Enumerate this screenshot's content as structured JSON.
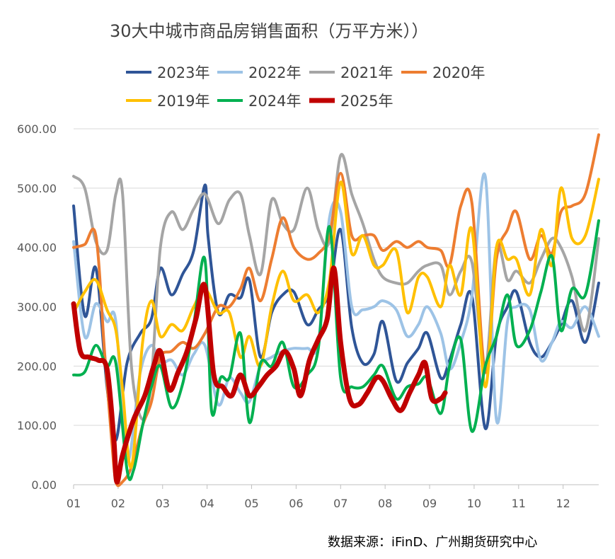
{
  "chart_data": {
    "type": "line",
    "title": "30大中城市商品房销售面积（万平方米））",
    "source": "数据来源：iFinD、广州期货研究中心",
    "x_tick_labels": [
      "01",
      "02",
      "03",
      "04",
      "05",
      "06",
      "07",
      "08",
      "09",
      "10",
      "11",
      "12"
    ],
    "y_tick_labels": [
      "0.00",
      "100.00",
      "200.00",
      "300.00",
      "400.00",
      "500.00",
      "600.00"
    ],
    "ylim": [
      0,
      600
    ],
    "x_domain": [
      1,
      12.8
    ],
    "legend_position": "top",
    "series": [
      {
        "name": "2023年",
        "color": "#2F5597",
        "width": 4,
        "x": [
          1.0,
          1.25,
          1.5,
          1.75,
          1.95,
          2.2,
          2.5,
          2.75,
          2.95,
          3.2,
          3.45,
          3.7,
          3.95,
          4.02,
          4.25,
          4.5,
          4.75,
          4.95,
          5.2,
          5.45,
          5.7,
          5.95,
          6.25,
          6.5,
          6.75,
          7.0,
          7.25,
          7.5,
          7.75,
          7.95,
          8.25,
          8.5,
          8.75,
          8.95,
          9.25,
          9.45,
          9.7,
          9.95,
          10.25,
          10.5,
          10.75,
          10.95,
          11.25,
          11.5,
          11.75,
          11.95,
          12.2,
          12.5,
          12.8
        ],
        "y": [
          470,
          285,
          365,
          165,
          75,
          205,
          255,
          280,
          365,
          320,
          355,
          395,
          505,
          420,
          290,
          320,
          315,
          345,
          215,
          290,
          320,
          325,
          270,
          295,
          325,
          430,
          265,
          205,
          220,
          275,
          175,
          205,
          230,
          255,
          180,
          210,
          270,
          318,
          95,
          250,
          300,
          325,
          240,
          215,
          240,
          270,
          310,
          240,
          340
        ]
      },
      {
        "name": "2022年",
        "color": "#9DC3E6",
        "width": 4,
        "x": [
          1.0,
          1.25,
          1.5,
          1.75,
          1.95,
          2.2,
          2.5,
          2.75,
          2.95,
          3.2,
          3.45,
          3.7,
          3.95,
          4.25,
          4.5,
          4.75,
          4.95,
          5.2,
          5.45,
          5.7,
          5.95,
          6.25,
          6.5,
          6.75,
          7.0,
          7.25,
          7.5,
          7.75,
          7.95,
          8.25,
          8.5,
          8.75,
          8.95,
          9.25,
          9.45,
          9.7,
          9.95,
          10.25,
          10.5,
          10.75,
          10.95,
          11.25,
          11.5,
          11.75,
          11.95,
          12.2,
          12.5,
          12.8
        ],
        "y": [
          410,
          250,
          305,
          275,
          275,
          40,
          190,
          235,
          205,
          210,
          185,
          220,
          235,
          135,
          180,
          155,
          140,
          200,
          215,
          225,
          230,
          230,
          240,
          450,
          460,
          300,
          295,
          300,
          310,
          295,
          250,
          270,
          300,
          255,
          195,
          240,
          318,
          520,
          110,
          275,
          300,
          295,
          210,
          240,
          275,
          265,
          300,
          250
        ]
      },
      {
        "name": "2021年",
        "color": "#A5A5A5",
        "width": 4,
        "x": [
          1.0,
          1.25,
          1.5,
          1.75,
          1.95,
          2.1,
          2.3,
          2.55,
          2.75,
          2.95,
          3.2,
          3.45,
          3.7,
          3.95,
          4.25,
          4.5,
          4.75,
          4.95,
          5.2,
          5.45,
          5.7,
          5.95,
          6.25,
          6.5,
          6.75,
          7.0,
          7.25,
          7.5,
          7.75,
          7.95,
          8.25,
          8.5,
          8.75,
          8.95,
          9.25,
          9.45,
          9.7,
          9.95,
          10.25,
          10.5,
          10.75,
          10.95,
          11.25,
          11.5,
          11.75,
          11.95,
          12.2,
          12.5,
          12.8
        ],
        "y": [
          520,
          500,
          410,
          395,
          490,
          490,
          200,
          110,
          180,
          400,
          460,
          430,
          465,
          490,
          440,
          480,
          490,
          420,
          355,
          480,
          440,
          430,
          500,
          430,
          410,
          555,
          490,
          440,
          380,
          350,
          340,
          340,
          360,
          370,
          370,
          320,
          360,
          375,
          200,
          400,
          345,
          360,
          340,
          380,
          415,
          400,
          350,
          260,
          415
        ]
      },
      {
        "name": "2020年",
        "color": "#ED7D31",
        "width": 4,
        "x": [
          1.0,
          1.25,
          1.5,
          1.7,
          1.85,
          1.95,
          2.1,
          2.3,
          2.55,
          2.75,
          2.95,
          3.2,
          3.45,
          3.7,
          3.95,
          4.25,
          4.5,
          4.75,
          4.95,
          5.2,
          5.45,
          5.7,
          5.95,
          6.25,
          6.5,
          6.75,
          7.0,
          7.25,
          7.5,
          7.75,
          7.95,
          8.25,
          8.5,
          8.75,
          8.95,
          9.25,
          9.45,
          9.7,
          9.95,
          10.25,
          10.5,
          10.75,
          10.95,
          11.25,
          11.5,
          11.75,
          11.95,
          12.2,
          12.5,
          12.8
        ],
        "y": [
          400,
          405,
          420,
          220,
          80,
          5,
          5,
          30,
          100,
          140,
          215,
          225,
          240,
          230,
          255,
          300,
          300,
          330,
          365,
          310,
          380,
          450,
          400,
          380,
          390,
          420,
          525,
          420,
          420,
          420,
          395,
          410,
          400,
          410,
          400,
          395,
          370,
          470,
          475,
          190,
          380,
          430,
          460,
          380,
          420,
          390,
          460,
          470,
          490,
          590
        ]
      },
      {
        "name": "2019年",
        "color": "#FFC000",
        "width": 4,
        "x": [
          1.0,
          1.25,
          1.5,
          1.75,
          1.95,
          2.1,
          2.3,
          2.55,
          2.75,
          2.95,
          3.2,
          3.45,
          3.7,
          3.95,
          4.25,
          4.5,
          4.75,
          4.95,
          5.2,
          5.45,
          5.7,
          5.95,
          6.25,
          6.5,
          6.75,
          7.0,
          7.25,
          7.5,
          7.75,
          7.95,
          8.25,
          8.5,
          8.75,
          8.95,
          9.25,
          9.45,
          9.7,
          9.95,
          10.25,
          10.5,
          10.75,
          10.95,
          11.25,
          11.5,
          11.75,
          11.95,
          12.2,
          12.5,
          12.8
        ],
        "y": [
          290,
          325,
          345,
          295,
          260,
          160,
          30,
          240,
          310,
          250,
          270,
          260,
          300,
          330,
          290,
          290,
          215,
          250,
          200,
          300,
          360,
          310,
          320,
          290,
          345,
          510,
          390,
          420,
          370,
          370,
          395,
          290,
          350,
          350,
          300,
          370,
          320,
          430,
          165,
          400,
          380,
          380,
          320,
          430,
          370,
          500,
          415,
          420,
          515
        ]
      },
      {
        "name": "2024年",
        "color": "#00B050",
        "width": 4,
        "x": [
          1.0,
          1.25,
          1.5,
          1.75,
          1.95,
          2.2,
          2.35,
          2.55,
          2.75,
          2.95,
          3.2,
          3.45,
          3.7,
          3.95,
          4.1,
          4.3,
          4.5,
          4.75,
          4.95,
          5.2,
          5.45,
          5.7,
          5.95,
          6.25,
          6.5,
          6.75,
          7.0,
          7.25,
          7.5,
          7.75,
          7.95,
          8.25,
          8.5,
          8.75,
          8.95,
          9.25,
          9.45,
          9.7,
          9.95,
          10.25,
          10.5,
          10.75,
          10.95,
          11.25,
          11.5,
          11.75,
          11.95,
          12.2,
          12.5,
          12.8
        ],
        "y": [
          185,
          190,
          235,
          200,
          205,
          25,
          25,
          100,
          165,
          200,
          130,
          170,
          270,
          380,
          125,
          180,
          180,
          255,
          105,
          205,
          200,
          240,
          165,
          185,
          230,
          435,
          180,
          165,
          165,
          185,
          200,
          145,
          165,
          170,
          180,
          120,
          200,
          245,
          90,
          200,
          250,
          320,
          235,
          260,
          325,
          385,
          260,
          330,
          320,
          445
        ]
      },
      {
        "name": "2025年",
        "color": "#C00000",
        "width": 7,
        "x": [
          1.0,
          1.15,
          1.35,
          1.55,
          1.75,
          1.9,
          1.97,
          2.1,
          2.35,
          2.6,
          2.8,
          2.95,
          3.15,
          3.35,
          3.55,
          3.75,
          3.95,
          4.15,
          4.35,
          4.55,
          4.75,
          4.95,
          5.15,
          5.35,
          5.55,
          5.75,
          5.95,
          6.1,
          6.3,
          6.5,
          6.7,
          6.85,
          7.0,
          7.2,
          7.4,
          7.6,
          7.8,
          7.95,
          8.15,
          8.35,
          8.55,
          8.75,
          8.9,
          9.05,
          9.25,
          9.35
        ],
        "y": [
          305,
          225,
          215,
          210,
          195,
          80,
          5,
          50,
          110,
          150,
          200,
          225,
          160,
          190,
          225,
          280,
          335,
          185,
          165,
          150,
          185,
          150,
          165,
          185,
          200,
          225,
          195,
          150,
          210,
          245,
          280,
          365,
          240,
          145,
          135,
          155,
          180,
          175,
          145,
          125,
          155,
          185,
          205,
          145,
          145,
          155
        ]
      }
    ]
  }
}
